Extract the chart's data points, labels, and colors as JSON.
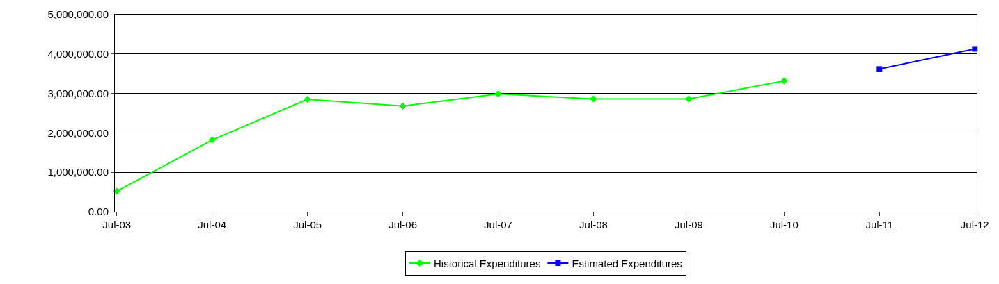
{
  "chart_data": {
    "type": "line",
    "categories": [
      "Jul-03",
      "Jul-04",
      "Jul-05",
      "Jul-06",
      "Jul-07",
      "Jul-08",
      "Jul-09",
      "Jul-10",
      "Jul-11",
      "Jul-12"
    ],
    "series": [
      {
        "name": "Historical Expenditures",
        "color": "#00ff00",
        "marker": "diamond",
        "values": [
          520000,
          1820000,
          2850000,
          2680000,
          2990000,
          2860000,
          2860000,
          3320000,
          null,
          null
        ]
      },
      {
        "name": "Estimated Expenditures",
        "color": "#0000ff",
        "marker": "square",
        "values": [
          null,
          null,
          null,
          null,
          null,
          null,
          null,
          null,
          3620000,
          4130000
        ]
      }
    ],
    "ylim": [
      0,
      5000000
    ],
    "yticks": [
      {
        "value": 0,
        "label": "0.00"
      },
      {
        "value": 1000000,
        "label": "1,000,000.00"
      },
      {
        "value": 2000000,
        "label": "2,000,000.00"
      },
      {
        "value": 3000000,
        "label": "3,000,000.00"
      },
      {
        "value": 4000000,
        "label": "4,000,000.00"
      },
      {
        "value": 5000000,
        "label": "5,000,000.00"
      }
    ],
    "grid": "y",
    "legend": "bottom",
    "line_style": "solid"
  }
}
